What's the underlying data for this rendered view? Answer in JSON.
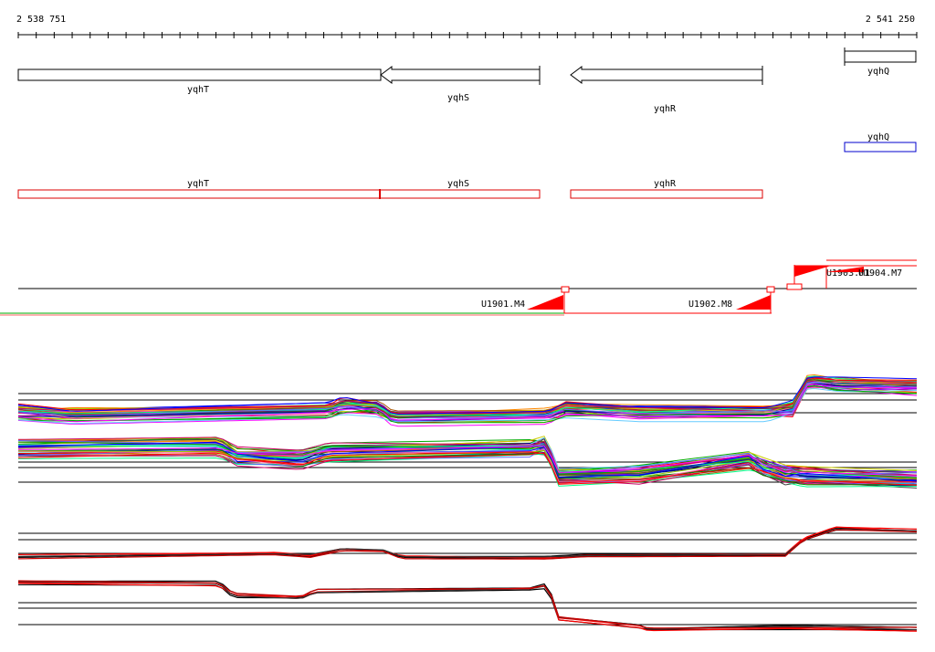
{
  "ruler": {
    "start_label": "2 538 751",
    "end_label": "2 541 250",
    "tick_count": 51
  },
  "genes_annotation": [
    {
      "name": "yqhT",
      "strand": "+"
    },
    {
      "name": "yqhS",
      "strand": "-"
    },
    {
      "name": "yqhR",
      "strand": "-"
    },
    {
      "name": "yqhQ",
      "strand": "+"
    }
  ],
  "genes_blue": [
    {
      "name": "yqhQ"
    }
  ],
  "genes_red": [
    {
      "name": "yqhT"
    },
    {
      "name": "yqhS"
    },
    {
      "name": "yqhR"
    }
  ],
  "transcription_units": [
    {
      "name": "U1901.M4"
    },
    {
      "name": "U1902.M8"
    },
    {
      "name": "U1903.M1"
    },
    {
      "name": "U1904.M7"
    }
  ],
  "colors": {
    "axis": "#000000",
    "gene_outline": "#000000",
    "blue_gene": "#0000cc",
    "red_gene": "#dd0000",
    "tu_marker": "#ff0000",
    "tu_line_green": "#00aa00"
  }
}
